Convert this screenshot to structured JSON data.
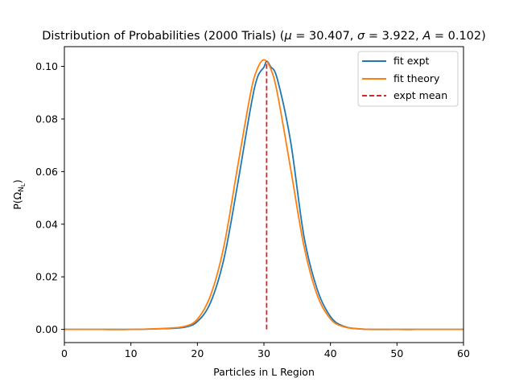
{
  "chart_data": {
    "type": "line",
    "title": "Distribution of Probabilities (2000 Trials) (μ = 30.407, σ = 3.922, A = 0.102)",
    "xlabel": "Particles in L Region",
    "ylabel": "P(Ω_NL)",
    "xlim": [
      0,
      60
    ],
    "ylim": [
      -0.005,
      0.1075
    ],
    "xticks": [
      0,
      10,
      20,
      30,
      40,
      50,
      60
    ],
    "yticks": [
      0.0,
      0.02,
      0.04,
      0.06,
      0.08,
      0.1
    ],
    "xtick_labels": [
      "0",
      "10",
      "20",
      "30",
      "40",
      "50",
      "60"
    ],
    "ytick_labels": [
      "0.00",
      "0.02",
      "0.04",
      "0.06",
      "0.08",
      "0.10"
    ],
    "grid": false,
    "legend_position": "top-right",
    "series": [
      {
        "name": "fit expt",
        "color": "#1f77b4",
        "style": "solid",
        "x": [
          0,
          5,
          10,
          15,
          18,
          20,
          22,
          24,
          26,
          28,
          29,
          30,
          30.407,
          31,
          32,
          34,
          36,
          38,
          40,
          42,
          45,
          50,
          55,
          60
        ],
        "y": [
          0.0,
          0.0,
          0.0,
          0.0003,
          0.0008,
          0.003,
          0.0104,
          0.027,
          0.0545,
          0.0843,
          0.0957,
          0.0997,
          0.102,
          0.0999,
          0.0953,
          0.0716,
          0.0356,
          0.0153,
          0.0049,
          0.0012,
          0.0001,
          0.0,
          0.0,
          0.0
        ]
      },
      {
        "name": "fit theory",
        "color": "#ff7f0e",
        "style": "solid",
        "x": [
          0,
          5,
          10,
          15,
          18,
          20,
          22,
          24,
          26,
          28,
          29,
          30,
          31,
          32,
          34,
          36,
          38,
          40,
          42,
          45,
          50,
          55,
          60
        ],
        "y": [
          0.0,
          0.0,
          0.0,
          0.0004,
          0.0011,
          0.0039,
          0.0131,
          0.0318,
          0.0612,
          0.0899,
          0.099,
          0.1025,
          0.0992,
          0.09,
          0.0613,
          0.0319,
          0.0131,
          0.004,
          0.001,
          0.0001,
          0.0,
          0.0,
          0.0
        ]
      }
    ],
    "annotations": [
      {
        "name": "expt mean",
        "type": "vertical-line",
        "color": "#d62728",
        "style": "dashed",
        "x": 30.407,
        "y_range": [
          0.0,
          0.102
        ]
      }
    ]
  }
}
